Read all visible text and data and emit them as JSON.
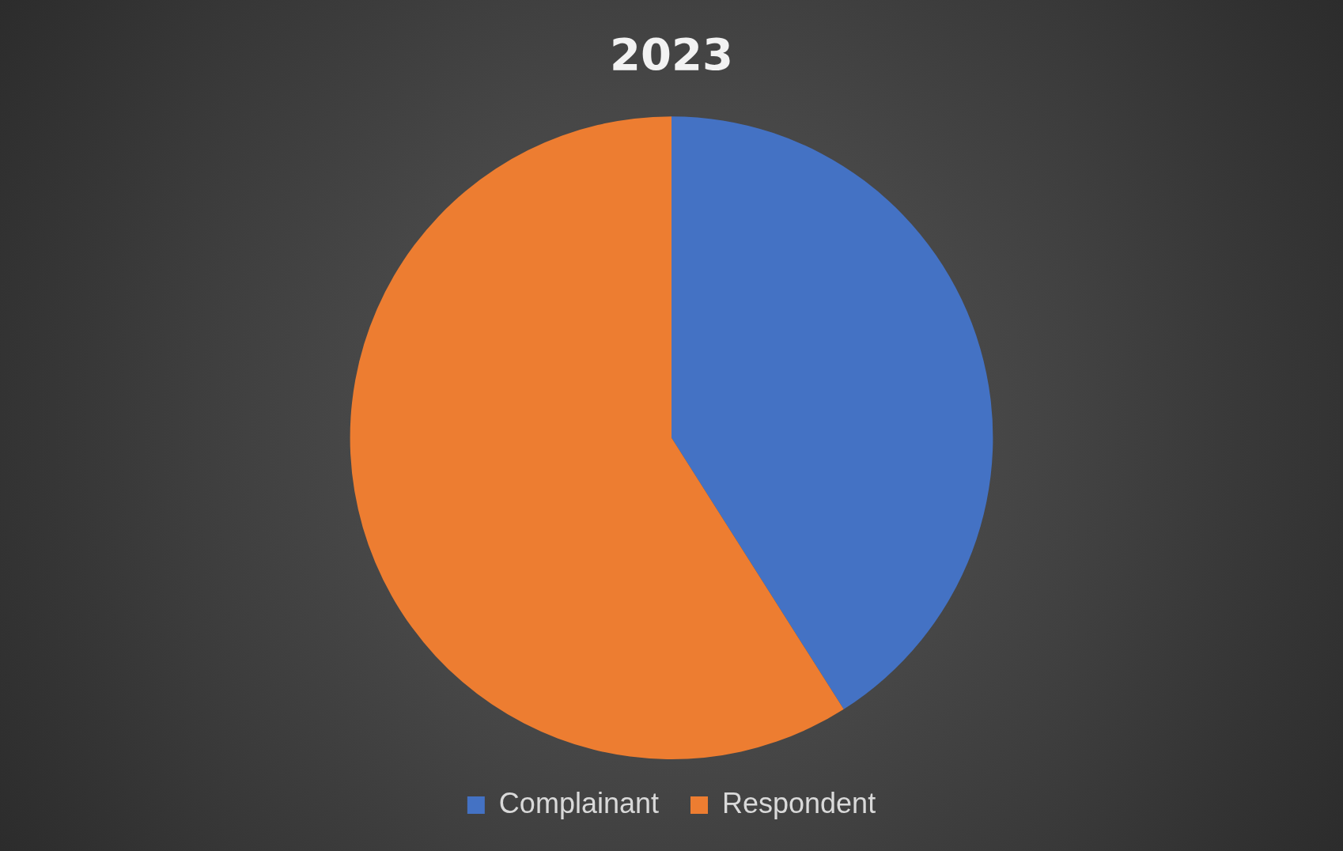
{
  "chart_data": {
    "type": "pie",
    "title": "2023",
    "categories": [
      "Complainant",
      "Respondent"
    ],
    "values": [
      41,
      59
    ],
    "colors": [
      "#4472c4",
      "#ed7d31"
    ],
    "legend": "bottom"
  }
}
